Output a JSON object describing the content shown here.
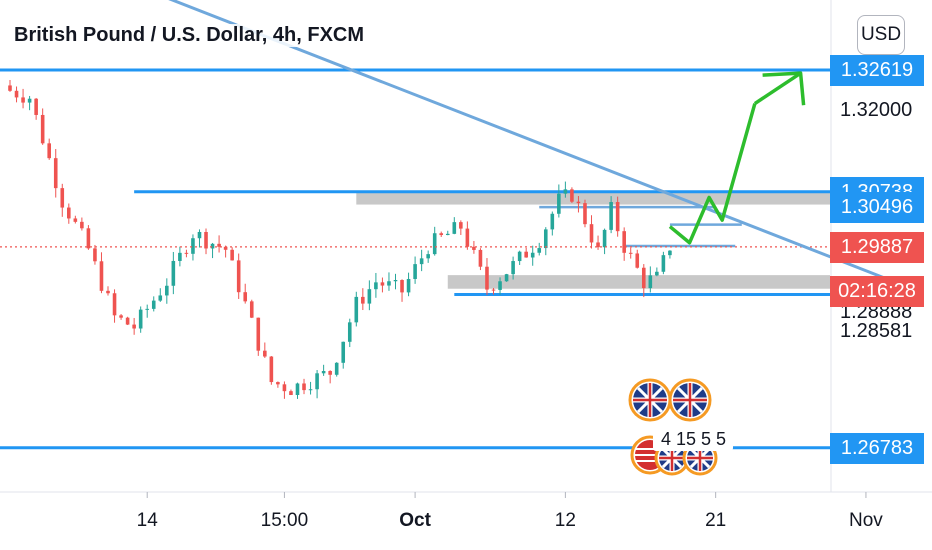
{
  "header": {
    "title": "British Pound / U.S. Dollar, 4h, FXCM",
    "currency_button": "USD"
  },
  "colors": {
    "up_candle": "#26a69a",
    "down_candle": "#ef5350",
    "level_line": "#2196f3",
    "trendline": "#6fa8dc",
    "zone_fill": "#c8c8c8",
    "forecast_arrow": "#2dbd2d",
    "current_price_label": "#ef5350"
  },
  "chart_data": {
    "type": "candlestick",
    "symbol": "GBPUSD",
    "timeframe": "4h",
    "ylim": [
      1.261,
      1.337
    ],
    "grid": false,
    "price_axis": {
      "tick_labels": [
        "1.32000",
        "1.28888",
        "1.28581"
      ],
      "highlighted_levels": [
        {
          "price": 1.32619,
          "label": "1.32619",
          "kind": "level"
        },
        {
          "price": 1.30738,
          "label": "1.30738",
          "kind": "level"
        },
        {
          "price": 1.30496,
          "label": "1.30496",
          "kind": "level"
        },
        {
          "price": 1.29887,
          "label": "1.29887",
          "kind": "current-price"
        },
        {
          "price": 1.292,
          "label": "02:16:28",
          "kind": "countdown"
        },
        {
          "price": 1.26783,
          "label": "1.26783",
          "kind": "level"
        }
      ]
    },
    "time_axis": {
      "tick_labels": [
        {
          "label": "14",
          "bold": false,
          "index": 21
        },
        {
          "label": "15:00",
          "bold": false,
          "index": 42
        },
        {
          "label": "Oct",
          "bold": true,
          "index": 62
        },
        {
          "label": "12",
          "bold": false,
          "index": 85
        },
        {
          "label": "21",
          "bold": false,
          "index": 108
        },
        {
          "label": "Nov",
          "bold": false,
          "index": 131
        }
      ]
    },
    "key_closes": [
      {
        "index": 0,
        "close": 1.323
      },
      {
        "index": 3,
        "close": 1.322
      },
      {
        "index": 8,
        "close": 1.306
      },
      {
        "index": 12,
        "close": 1.2985
      },
      {
        "index": 16,
        "close": 1.288
      },
      {
        "index": 19,
        "close": 1.2865
      },
      {
        "index": 24,
        "close": 1.2935
      },
      {
        "index": 28,
        "close": 1.301
      },
      {
        "index": 33,
        "close": 1.2985
      },
      {
        "index": 36,
        "close": 1.29
      },
      {
        "index": 40,
        "close": 1.278
      },
      {
        "index": 43,
        "close": 1.277
      },
      {
        "index": 49,
        "close": 1.2795
      },
      {
        "index": 53,
        "close": 1.29
      },
      {
        "index": 56,
        "close": 1.2935
      },
      {
        "index": 60,
        "close": 1.292
      },
      {
        "index": 64,
        "close": 1.299
      },
      {
        "index": 69,
        "close": 1.302
      },
      {
        "index": 73,
        "close": 1.2925
      },
      {
        "index": 77,
        "close": 1.296
      },
      {
        "index": 81,
        "close": 1.3
      },
      {
        "index": 84,
        "close": 1.306
      },
      {
        "index": 86,
        "close": 1.307
      },
      {
        "index": 88,
        "close": 1.303
      },
      {
        "index": 90,
        "close": 1.298
      },
      {
        "index": 92,
        "close": 1.3045
      },
      {
        "index": 94,
        "close": 1.299
      },
      {
        "index": 97,
        "close": 1.2935
      },
      {
        "index": 99,
        "close": 1.294
      },
      {
        "index": 101,
        "close": 1.299
      }
    ],
    "drawings": {
      "horizontal_levels": [
        {
          "price": 1.32619,
          "from_index": -2,
          "to_index": 134
        },
        {
          "price": 1.30738,
          "from_index": 19,
          "to_index": 134
        },
        {
          "price": 1.26783,
          "from_index": -2,
          "to_index": 134
        },
        {
          "price": 1.2915,
          "from_index": 68,
          "to_index": 134
        }
      ],
      "zones": [
        {
          "from_index": 53,
          "to_index": 134,
          "top": 1.3074,
          "bottom": 1.3054
        },
        {
          "from_index": 67,
          "to_index": 134,
          "top": 1.2945,
          "bottom": 1.2924
        }
      ],
      "short_levels": [
        {
          "price": 1.305,
          "from_index": 81,
          "to_index": 108
        },
        {
          "price": 1.3023,
          "from_index": 101,
          "to_index": 112
        },
        {
          "price": 1.299,
          "from_index": 94,
          "to_index": 111
        }
      ],
      "trendline": {
        "from": {
          "index": 2,
          "price": 1.346
        },
        "to": {
          "index": 134,
          "price": 1.294
        }
      },
      "forecast_path": [
        {
          "index": 101,
          "price": 1.302
        },
        {
          "index": 104,
          "price": 1.2995
        },
        {
          "index": 107,
          "price": 1.3065
        },
        {
          "index": 109,
          "price": 1.303
        },
        {
          "index": 114,
          "price": 1.321
        }
      ],
      "forecast_arrow_tip": {
        "index": 121,
        "price": 1.3257
      }
    },
    "events": {
      "flags": [
        "UK",
        "UK",
        "US",
        "UK",
        "UK"
      ],
      "counts": [
        "4",
        "15",
        "5",
        "5"
      ]
    }
  }
}
